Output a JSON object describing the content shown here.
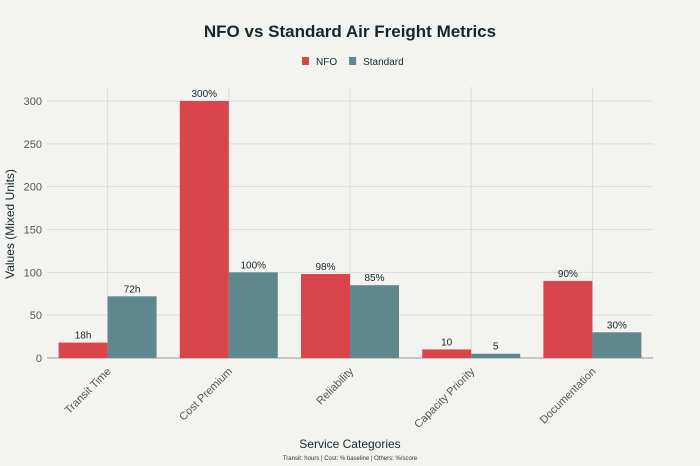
{
  "chart_data": {
    "type": "bar",
    "title": "NFO vs Standard Air Freight Metrics",
    "xlabel": "Service Categories",
    "ylabel": "Values (Mixed Units)",
    "annotation": "Transit: hours | Cost: % baseline | Others: %/score",
    "categories": [
      "Transit Time",
      "Cost Premium",
      "Reliability",
      "Capacity Priority",
      "Documentation"
    ],
    "series": [
      {
        "name": "NFO",
        "color": "#d9454a",
        "values": [
          18,
          300,
          98,
          10,
          90
        ],
        "labels": [
          "18h",
          "300%",
          "98%",
          "10",
          "90%"
        ]
      },
      {
        "name": "Standard",
        "color": "#5e888d",
        "values": [
          72,
          100,
          85,
          5,
          30
        ],
        "labels": [
          "72h",
          "100%",
          "85%",
          "5",
          "30%"
        ]
      }
    ],
    "ylim": [
      0,
      315
    ],
    "yticks": [
      0,
      50,
      100,
      150,
      200,
      250,
      300
    ],
    "grid": true,
    "legend_position": "top-center"
  }
}
